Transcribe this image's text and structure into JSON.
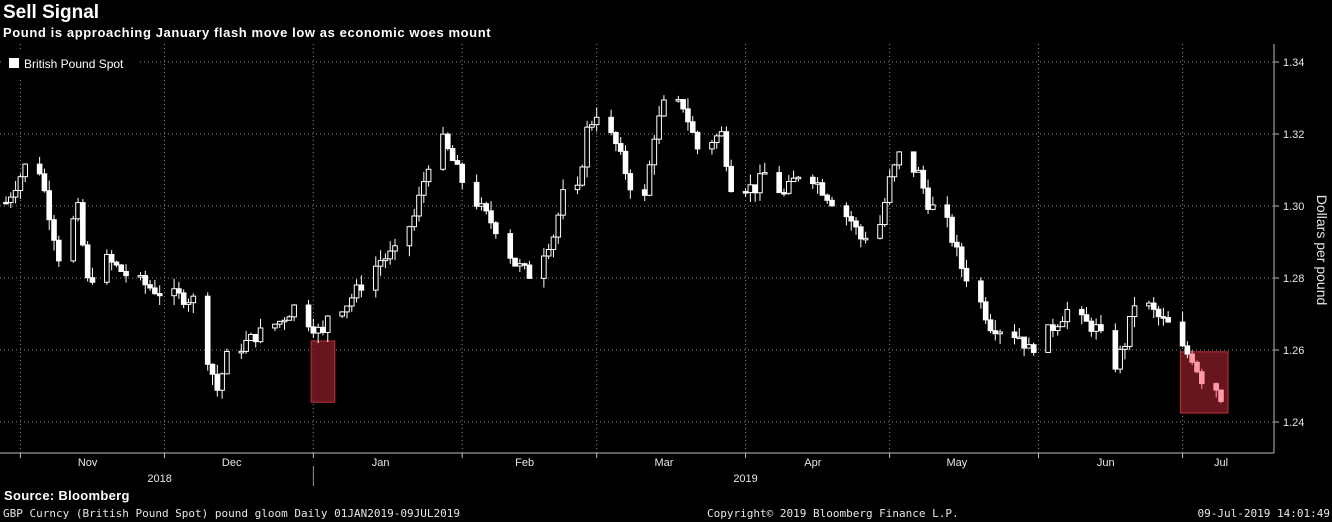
{
  "title": "Sell Signal",
  "subtitle": "Pound is approaching January flash move low as economic woes mount",
  "source": "Source: Bloomberg",
  "footer": {
    "left": "GBP Curncy (British Pound Spot) pound gloom  Daily 01JAN2019-09JUL2019",
    "center": "Copyright© 2019 Bloomberg Finance L.P.",
    "right": "09-Jul-2019 14:01:49"
  },
  "chart_data": {
    "type": "candlestick",
    "title": "Sell Signal",
    "subtitle": "Pound is approaching January flash move low as economic woes mount",
    "xlabel": "",
    "ylabel": "Dollars per pound",
    "legend": {
      "position": "top-left",
      "entries": [
        "British Pound Spot"
      ]
    },
    "series_name": "British Pound Spot",
    "ylim": [
      1.235,
      1.342
    ],
    "y_ticks": [
      "1.24",
      "1.26",
      "1.28",
      "1.30",
      "1.32",
      "1.34"
    ],
    "grid": true,
    "x_months": [
      "Nov",
      "Dec",
      "Jan",
      "Feb",
      "Mar",
      "Apr",
      "May",
      "Jun",
      "Jul"
    ],
    "x_years": [
      "2018",
      "2019"
    ],
    "x_range": [
      "2018-10-29",
      "2019-07-09"
    ],
    "highlight_boxes": [
      {
        "x": [
          "2019-01-02",
          "2019-01-04"
        ],
        "y": [
          1.2455,
          1.2625
        ]
      },
      {
        "x": [
          "2019-07-02",
          "2019-07-09"
        ],
        "y": [
          1.2425,
          1.2595
        ]
      }
    ],
    "colors": {
      "background": "#000000",
      "candle": "#ffffff",
      "last_candles": "#ff9aa5",
      "highlight_fill": "#7a1a22",
      "highlight_stroke": "#c0303c",
      "grid": "#8a8a8a"
    },
    "anchors": [
      [
        "2018-10-29",
        1.301
      ],
      [
        "2018-11-02",
        1.311
      ],
      [
        "2018-11-05",
        1.31
      ],
      [
        "2018-11-09",
        1.286
      ],
      [
        "2018-11-13",
        1.299
      ],
      [
        "2018-11-15",
        1.279
      ],
      [
        "2018-11-19",
        1.285
      ],
      [
        "2018-11-23",
        1.281
      ],
      [
        "2018-11-30",
        1.276
      ],
      [
        "2018-12-07",
        1.274
      ],
      [
        "2018-12-10",
        1.258
      ],
      [
        "2018-12-12",
        1.249
      ],
      [
        "2018-12-14",
        1.258
      ],
      [
        "2018-12-20",
        1.264
      ],
      [
        "2018-12-25",
        1.268
      ],
      [
        "2018-12-28",
        1.272
      ],
      [
        "2019-01-03",
        1.264
      ],
      [
        "2019-01-04",
        1.27
      ],
      [
        "2019-01-08",
        1.273
      ],
      [
        "2019-01-15",
        1.285
      ],
      [
        "2019-01-18",
        1.287
      ],
      [
        "2019-01-22",
        1.297
      ],
      [
        "2019-01-25",
        1.312
      ],
      [
        "2019-01-28",
        1.318
      ],
      [
        "2019-02-01",
        1.307
      ],
      [
        "2019-02-05",
        1.299
      ],
      [
        "2019-02-08",
        1.294
      ],
      [
        "2019-02-12",
        1.284
      ],
      [
        "2019-02-15",
        1.281
      ],
      [
        "2019-02-20",
        1.292
      ],
      [
        "2019-02-22",
        1.303
      ],
      [
        "2019-02-25",
        1.304
      ],
      [
        "2019-02-27",
        1.321
      ],
      [
        "2019-03-01",
        1.326
      ],
      [
        "2019-03-05",
        1.317
      ],
      [
        "2019-03-08",
        1.306
      ],
      [
        "2019-03-11",
        1.302
      ],
      [
        "2019-03-13",
        1.32
      ],
      [
        "2019-03-15",
        1.328
      ],
      [
        "2019-03-19",
        1.328
      ],
      [
        "2019-03-22",
        1.316
      ],
      [
        "2019-03-27",
        1.32
      ],
      [
        "2019-03-29",
        1.306
      ],
      [
        "2019-04-03",
        1.305
      ],
      [
        "2019-04-05",
        1.309
      ],
      [
        "2019-04-09",
        1.303
      ],
      [
        "2019-04-12",
        1.309
      ],
      [
        "2019-04-15",
        1.308
      ],
      [
        "2019-04-18",
        1.303
      ],
      [
        "2019-04-23",
        1.296
      ],
      [
        "2019-04-25",
        1.291
      ],
      [
        "2019-04-29",
        1.295
      ],
      [
        "2019-05-01",
        1.307
      ],
      [
        "2019-05-03",
        1.314
      ],
      [
        "2019-05-07",
        1.309
      ],
      [
        "2019-05-09",
        1.301
      ],
      [
        "2019-05-13",
        1.295
      ],
      [
        "2019-05-16",
        1.283
      ],
      [
        "2019-05-20",
        1.273
      ],
      [
        "2019-05-22",
        1.267
      ],
      [
        "2019-05-24",
        1.266
      ],
      [
        "2019-05-28",
        1.264
      ],
      [
        "2019-05-30",
        1.26
      ],
      [
        "2019-06-03",
        1.265
      ],
      [
        "2019-06-05",
        1.268
      ],
      [
        "2019-06-07",
        1.271
      ],
      [
        "2019-06-10",
        1.268
      ],
      [
        "2019-06-13",
        1.266
      ],
      [
        "2019-06-17",
        1.256
      ],
      [
        "2019-06-19",
        1.262
      ],
      [
        "2019-06-21",
        1.273
      ],
      [
        "2019-06-24",
        1.272
      ],
      [
        "2019-06-26",
        1.269
      ],
      [
        "2019-06-28",
        1.267
      ],
      [
        "2019-07-01",
        1.26
      ],
      [
        "2019-07-03",
        1.258
      ],
      [
        "2019-07-05",
        1.252
      ],
      [
        "2019-07-08",
        1.2495
      ],
      [
        "2019-07-09",
        1.247
      ]
    ]
  }
}
